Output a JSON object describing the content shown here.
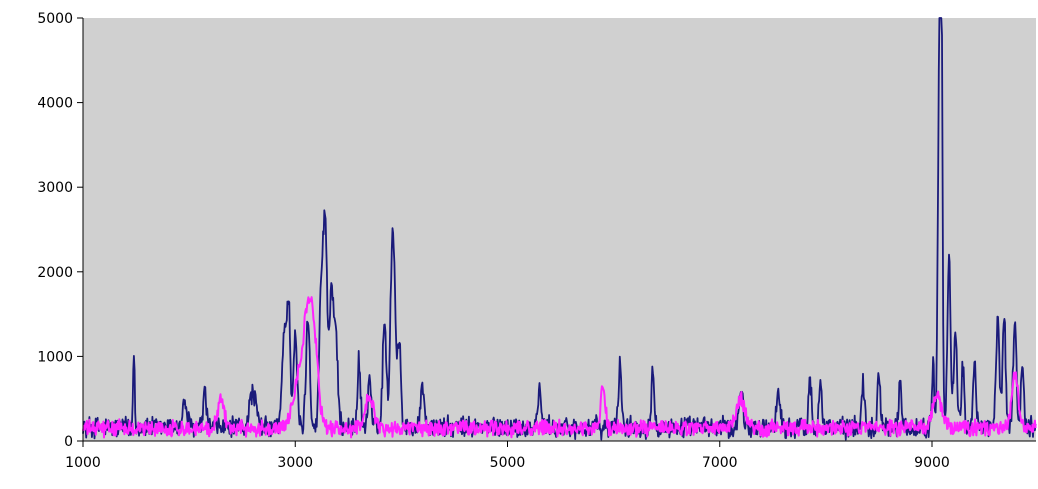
{
  "chart_data": {
    "type": "line",
    "title": "",
    "xlabel": "",
    "ylabel": "",
    "xlim": [
      1000,
      9980
    ],
    "ylim": [
      0,
      5000
    ],
    "x_ticks": [
      1000,
      3000,
      5000,
      7000,
      9000
    ],
    "x_tick_labels": [
      "1000",
      "3000",
      "5000",
      "7000",
      "9000"
    ],
    "y_ticks": [
      0,
      1000,
      2000,
      3000,
      4000,
      5000
    ],
    "y_tick_labels": [
      "0",
      "1000",
      "2000",
      "3000",
      "4000",
      "5000"
    ],
    "grid": false,
    "legend": "none",
    "plot_background": "#d0d0d0",
    "series": [
      {
        "color": "#1a1a7a",
        "noise": {
          "base": 160,
          "amplitude": 150,
          "step": 6
        },
        "peaks": [
          [
            1480,
            880,
            8
          ],
          [
            1960,
            300,
            20
          ],
          [
            2150,
            400,
            15
          ],
          [
            2600,
            420,
            30
          ],
          [
            2900,
            1200,
            22
          ],
          [
            2940,
            1300,
            14
          ],
          [
            3000,
            1050,
            18
          ],
          [
            3120,
            1300,
            18
          ],
          [
            3240,
            1350,
            16
          ],
          [
            3280,
            2520,
            20
          ],
          [
            3340,
            1520,
            18
          ],
          [
            3380,
            1050,
            20
          ],
          [
            3600,
            780,
            14
          ],
          [
            3700,
            620,
            14
          ],
          [
            3840,
            1300,
            16
          ],
          [
            3920,
            2360,
            22
          ],
          [
            3980,
            980,
            16
          ],
          [
            4200,
            520,
            16
          ],
          [
            5300,
            440,
            16
          ],
          [
            6060,
            750,
            14
          ],
          [
            6370,
            720,
            14
          ],
          [
            7200,
            440,
            20
          ],
          [
            7550,
            380,
            20
          ],
          [
            7850,
            580,
            14
          ],
          [
            7950,
            600,
            14
          ],
          [
            8350,
            520,
            14
          ],
          [
            8500,
            650,
            14
          ],
          [
            8700,
            510,
            14
          ],
          [
            9010,
            800,
            10
          ],
          [
            9070,
            4580,
            14
          ],
          [
            9090,
            4000,
            10
          ],
          [
            9160,
            2010,
            14
          ],
          [
            9220,
            1050,
            16
          ],
          [
            9290,
            700,
            14
          ],
          [
            9400,
            780,
            14
          ],
          [
            9620,
            1250,
            16
          ],
          [
            9680,
            1380,
            14
          ],
          [
            9780,
            1200,
            16
          ],
          [
            9850,
            700,
            14
          ]
        ]
      },
      {
        "color": "#ff22ff",
        "noise": {
          "base": 150,
          "amplitude": 110,
          "step": 6
        },
        "peaks": [
          [
            2300,
            380,
            30
          ],
          [
            3050,
            640,
            60
          ],
          [
            3120,
            900,
            40
          ],
          [
            3180,
            860,
            40
          ],
          [
            3700,
            380,
            40
          ],
          [
            5900,
            520,
            20
          ],
          [
            7200,
            340,
            40
          ],
          [
            9050,
            420,
            40
          ],
          [
            9780,
            650,
            30
          ]
        ]
      }
    ]
  }
}
